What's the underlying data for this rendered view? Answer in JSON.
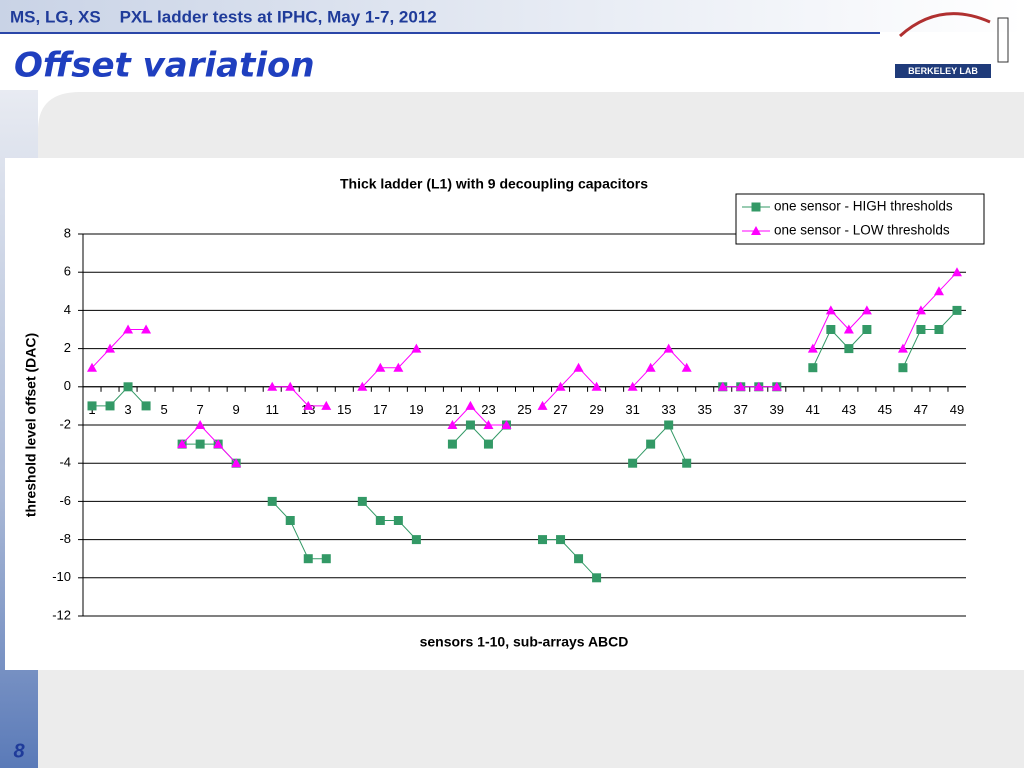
{
  "slide": {
    "header": "MS, LG, XS    PXL ladder tests at IPHC, May 1-7, 2012",
    "title": "Offset variation",
    "logo_text": "BERKELEY LAB",
    "page_number": "8"
  },
  "chart_data": {
    "type": "line",
    "title": "Thick ladder (L1) with 9 decoupling capacitors",
    "x_label": "sensors 1-10, sub-arrays ABCD",
    "y_label": "threshold level offset (DAC)",
    "categories": [
      1,
      null,
      3,
      null,
      5,
      null,
      7,
      null,
      9,
      null,
      11,
      null,
      13,
      null,
      15,
      null,
      17,
      null,
      19,
      null,
      21,
      null,
      23,
      null,
      25,
      null,
      27,
      null,
      29,
      null,
      31,
      null,
      33,
      null,
      35,
      null,
      37,
      null,
      39,
      null,
      41,
      null,
      43,
      null,
      45,
      null,
      47,
      null,
      49
    ],
    "series": [
      {
        "name": "one sensor - HIGH thresholds",
        "color": "#339966",
        "marker": "square",
        "values": [
          -1,
          -1,
          0,
          -1,
          null,
          -3,
          -3,
          -3,
          -4,
          null,
          -6,
          -7,
          -9,
          -9,
          null,
          -6,
          -7,
          -7,
          -8,
          null,
          -3,
          -2,
          -3,
          -2,
          null,
          -8,
          -8,
          -9,
          -10,
          null,
          -4,
          -3,
          -2,
          -4,
          null,
          0,
          0,
          0,
          0,
          null,
          1,
          3,
          2,
          3,
          null,
          1,
          3,
          3,
          4
        ]
      },
      {
        "name": "one sensor - LOW thresholds",
        "color": "#ff00ff",
        "marker": "triangle",
        "values": [
          1,
          2,
          3,
          3,
          null,
          -3,
          -2,
          -3,
          -4,
          null,
          0,
          0,
          -1,
          -1,
          null,
          0,
          1,
          1,
          2,
          null,
          -2,
          -1,
          -2,
          -2,
          null,
          -1,
          0,
          1,
          0,
          null,
          0,
          1,
          2,
          1,
          null,
          0,
          0,
          0,
          0,
          null,
          2,
          4,
          3,
          4,
          null,
          2,
          4,
          5,
          6
        ]
      }
    ],
    "ylim": [
      -12,
      8
    ],
    "yticks": [
      -12,
      -10,
      -8,
      -6,
      -4,
      -2,
      0,
      2,
      4,
      6,
      8
    ],
    "grid": true,
    "legend": "top-right"
  }
}
